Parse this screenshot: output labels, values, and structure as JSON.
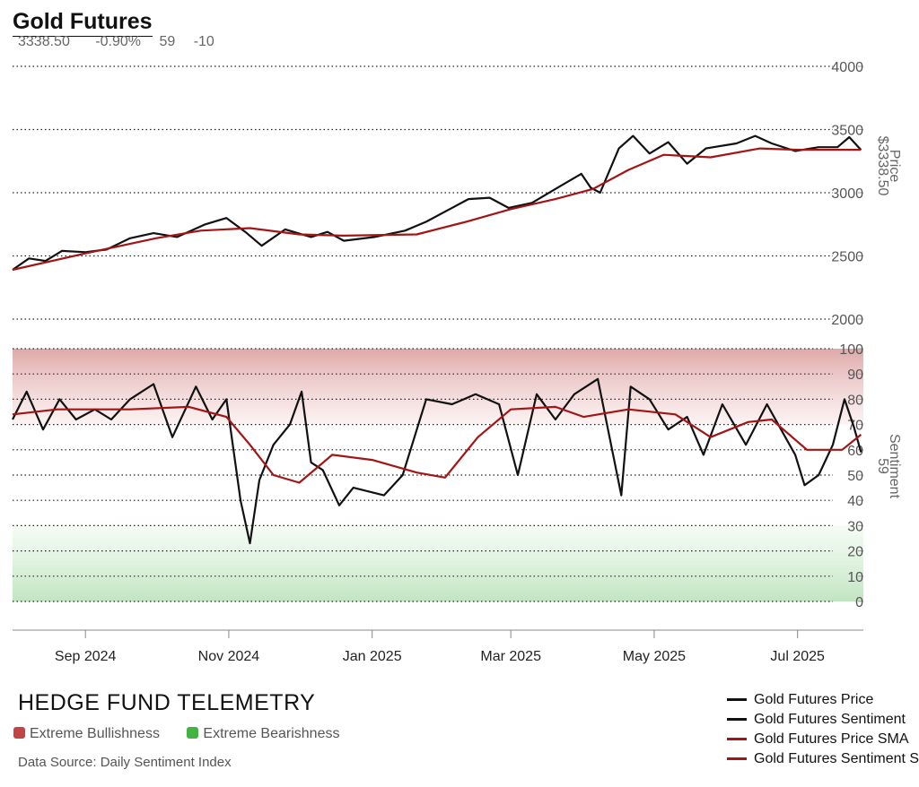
{
  "header": {
    "title": "Gold Futures",
    "last_price": "3338.50",
    "change_pct": "-0.90%",
    "sentiment": "59",
    "sentiment_change": "-10"
  },
  "footer": {
    "brand": "HEDGE FUND TELEMETRY",
    "source": "Data Source: Daily Sentiment Index",
    "key": [
      {
        "label": "Extreme Bullishness",
        "color": "#c24545"
      },
      {
        "label": "Extreme Bearishness",
        "color": "#43b443"
      }
    ]
  },
  "chart_data": [
    {
      "type": "line",
      "panel": "price",
      "ylabel": "Price",
      "last_value_label": "$3338.50",
      "ylim": [
        2000,
        4000
      ],
      "yticks": [
        2000,
        2500,
        3000,
        3500,
        4000
      ],
      "grid": true,
      "series": [
        {
          "name": "Gold Futures Price",
          "color": "#111111",
          "x": [
            "2024-08-01",
            "2024-08-08",
            "2024-08-15",
            "2024-08-22",
            "2024-09-01",
            "2024-09-10",
            "2024-09-20",
            "2024-09-30",
            "2024-10-10",
            "2024-10-22",
            "2024-10-31",
            "2024-11-08",
            "2024-11-15",
            "2024-11-25",
            "2024-12-06",
            "2024-12-13",
            "2024-12-20",
            "2025-01-02",
            "2025-01-15",
            "2025-01-24",
            "2025-02-03",
            "2025-02-11",
            "2025-02-20",
            "2025-02-28",
            "2025-03-10",
            "2025-03-20",
            "2025-03-31",
            "2025-04-04",
            "2025-04-08",
            "2025-04-16",
            "2025-04-22",
            "2025-04-29",
            "2025-05-07",
            "2025-05-15",
            "2025-05-23",
            "2025-06-05",
            "2025-06-13",
            "2025-06-20",
            "2025-06-30",
            "2025-07-10",
            "2025-07-18",
            "2025-07-23",
            "2025-07-28"
          ],
          "values": [
            2390,
            2480,
            2460,
            2540,
            2530,
            2550,
            2640,
            2680,
            2650,
            2750,
            2800,
            2690,
            2580,
            2710,
            2650,
            2690,
            2620,
            2650,
            2700,
            2770,
            2870,
            2950,
            2960,
            2880,
            2920,
            3030,
            3150,
            3040,
            3000,
            3350,
            3450,
            3310,
            3400,
            3230,
            3350,
            3390,
            3450,
            3390,
            3330,
            3360,
            3360,
            3440,
            3338.5
          ]
        },
        {
          "name": "Gold Futures Price SMA",
          "color": "#a31515",
          "x": [
            "2024-08-01",
            "2024-09-01",
            "2024-10-01",
            "2024-10-20",
            "2024-11-10",
            "2024-12-01",
            "2024-12-20",
            "2025-01-20",
            "2025-02-10",
            "2025-03-01",
            "2025-03-20",
            "2025-04-05",
            "2025-04-20",
            "2025-05-05",
            "2025-05-25",
            "2025-06-15",
            "2025-07-01",
            "2025-07-28"
          ],
          "values": [
            2390,
            2520,
            2640,
            2700,
            2720,
            2670,
            2660,
            2670,
            2770,
            2870,
            2950,
            3030,
            3180,
            3300,
            3280,
            3350,
            3340,
            3340
          ]
        }
      ]
    },
    {
      "type": "line",
      "panel": "sentiment",
      "ylabel": "Sentiment",
      "last_value_label": "59",
      "ylim": [
        0,
        100
      ],
      "yticks": [
        0,
        10,
        20,
        30,
        40,
        50,
        60,
        70,
        80,
        90,
        100
      ],
      "grid": true,
      "bands": [
        {
          "label": "Extreme Bullishness",
          "from": 70,
          "to": 100,
          "color": "#c24545"
        },
        {
          "label": "Extreme Bearishness",
          "from": 0,
          "to": 30,
          "color": "#43b443"
        }
      ],
      "xticks": [
        "Sep 2024",
        "Nov 2024",
        "Jan 2025",
        "Mar 2025",
        "May 2025",
        "Jul 2025"
      ],
      "series": [
        {
          "name": "Gold Futures Sentiment",
          "color": "#111111",
          "x": [
            "2024-08-01",
            "2024-08-07",
            "2024-08-14",
            "2024-08-21",
            "2024-08-28",
            "2024-09-05",
            "2024-09-12",
            "2024-09-20",
            "2024-09-30",
            "2024-10-08",
            "2024-10-18",
            "2024-10-25",
            "2024-10-31",
            "2024-11-06",
            "2024-11-10",
            "2024-11-14",
            "2024-11-20",
            "2024-11-27",
            "2024-12-02",
            "2024-12-06",
            "2024-12-11",
            "2024-12-18",
            "2024-12-24",
            "2025-01-06",
            "2025-01-14",
            "2025-01-24",
            "2025-02-04",
            "2025-02-14",
            "2025-02-24",
            "2025-03-04",
            "2025-03-12",
            "2025-03-20",
            "2025-03-28",
            "2025-04-07",
            "2025-04-17",
            "2025-04-21",
            "2025-04-29",
            "2025-05-07",
            "2025-05-15",
            "2025-05-22",
            "2025-05-30",
            "2025-06-09",
            "2025-06-18",
            "2025-06-24",
            "2025-06-30",
            "2025-07-04",
            "2025-07-10",
            "2025-07-16",
            "2025-07-21",
            "2025-07-25",
            "2025-07-28"
          ],
          "values": [
            72,
            83,
            68,
            80,
            72,
            76,
            72,
            80,
            86,
            65,
            85,
            72,
            80,
            40,
            23,
            48,
            62,
            70,
            83,
            55,
            52,
            38,
            45,
            42,
            50,
            80,
            78,
            82,
            78,
            50,
            82,
            72,
            82,
            88,
            42,
            85,
            80,
            68,
            73,
            58,
            78,
            62,
            78,
            68,
            58,
            46,
            50,
            62,
            80,
            69,
            59
          ]
        },
        {
          "name": "Gold Futures Sentiment SMA",
          "color": "#a31515",
          "x": [
            "2024-08-01",
            "2024-08-20",
            "2024-09-20",
            "2024-10-15",
            "2024-10-31",
            "2024-11-10",
            "2024-11-20",
            "2024-12-01",
            "2024-12-15",
            "2025-01-01",
            "2025-01-20",
            "2025-02-01",
            "2025-02-15",
            "2025-03-01",
            "2025-03-20",
            "2025-04-01",
            "2025-04-20",
            "2025-05-10",
            "2025-05-25",
            "2025-06-10",
            "2025-06-20",
            "2025-07-05",
            "2025-07-20",
            "2025-07-28"
          ],
          "values": [
            74,
            76,
            76,
            77,
            73,
            62,
            50,
            47,
            58,
            56,
            51,
            49,
            65,
            76,
            77,
            73,
            76,
            74,
            65,
            71,
            72,
            60,
            60,
            66
          ]
        }
      ]
    }
  ],
  "legend": [
    {
      "label": "Gold Futures Price",
      "color": "#111111"
    },
    {
      "label": "Gold Futures Sentiment",
      "color": "#111111"
    },
    {
      "label": "Gold Futures Price SMA",
      "color": "#a31515"
    },
    {
      "label": "Gold Futures Sentiment SMA",
      "color": "#a31515"
    }
  ]
}
